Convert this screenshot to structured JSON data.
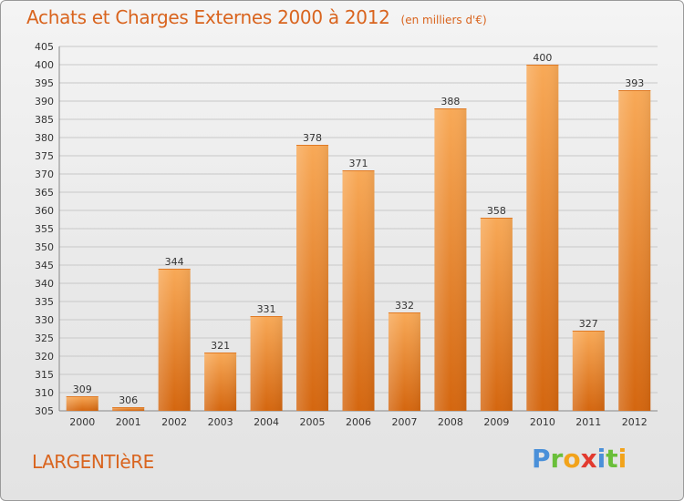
{
  "header": {
    "title": "Achats et Charges Externes 2000 à 2012",
    "subtitle": "(en milliers d'€)"
  },
  "footer": {
    "commune": "LARGENTIèRE",
    "brand": "Proxiti"
  },
  "colors": {
    "accent": "#d9641e",
    "bar_top": "#f7a553",
    "bar_bottom": "#d66a12",
    "grid": "#c8c8c8"
  },
  "chart_data": {
    "type": "bar",
    "title": "Achats et Charges Externes 2000 à 2012",
    "subtitle": "(en milliers d'€)",
    "categories": [
      "2000",
      "2001",
      "2002",
      "2003",
      "2004",
      "2005",
      "2006",
      "2007",
      "2008",
      "2009",
      "2010",
      "2011",
      "2012"
    ],
    "values": [
      309,
      306,
      344,
      321,
      331,
      378,
      371,
      332,
      388,
      358,
      400,
      327,
      393
    ],
    "ylim": [
      305,
      405
    ],
    "yticks": [
      305,
      310,
      315,
      320,
      325,
      330,
      335,
      340,
      345,
      350,
      355,
      360,
      365,
      370,
      375,
      380,
      385,
      390,
      395,
      400,
      405
    ],
    "grid": true,
    "xlabel": "",
    "ylabel": ""
  }
}
